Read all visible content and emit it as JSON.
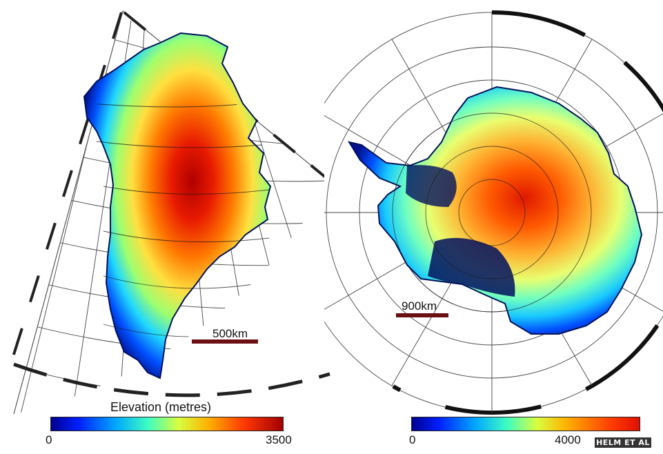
{
  "greenland": {
    "scale_label": "500km",
    "colorbar": {
      "title": "Elevation (metres)",
      "min": "0",
      "max": "3500"
    }
  },
  "antarctica": {
    "scale_label": "900km",
    "colorbar": {
      "min": "0",
      "max": "4000"
    }
  },
  "credit": "HELM ET AL",
  "colors": {
    "low": "#00008f",
    "mid": "#3fffc0",
    "high": "#a40000",
    "scale_bar": "#6b0f12"
  }
}
